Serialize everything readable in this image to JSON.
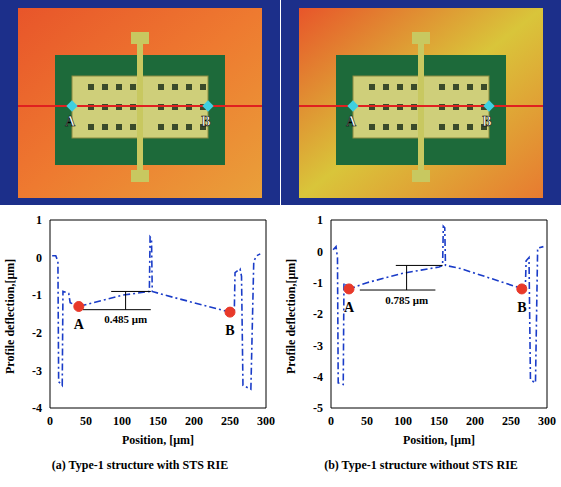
{
  "chart_data": [
    {
      "type": "line",
      "title": "(a) Type-1 structure with STS RIE",
      "x_label": "Position, [μm]",
      "y_label": "Profile deflection,[μm]",
      "color": "#1a3cc8",
      "line_style": "dashdot",
      "x": [
        3,
        8,
        11,
        12,
        17,
        18,
        26,
        28,
        40,
        60,
        80,
        100,
        120,
        138,
        139,
        141,
        142,
        160,
        180,
        200,
        220,
        240,
        250,
        256,
        257,
        264,
        266,
        268,
        279,
        283,
        287,
        292
      ],
      "values": [
        0.05,
        0.05,
        -0.1,
        -3.3,
        -3.4,
        -0.9,
        -0.95,
        -1.2,
        -1.3,
        -1.2,
        -1.1,
        -1.0,
        -0.95,
        -0.9,
        0.55,
        0.5,
        -0.9,
        -1.0,
        -1.1,
        -1.2,
        -1.3,
        -1.4,
        -1.45,
        -1.4,
        -0.4,
        -0.3,
        -0.5,
        -3.4,
        -3.5,
        -0.1,
        0.05,
        0.1
      ],
      "xlim": [
        0,
        300
      ],
      "xticks": [
        0,
        50,
        100,
        150,
        200,
        250,
        300
      ],
      "ylim": [
        -4,
        1
      ],
      "yticks": [
        -4,
        -3,
        -2,
        -1,
        0,
        1
      ],
      "points": [
        {
          "label": "A",
          "x": 40,
          "y": -1.3,
          "color": "#e8392a"
        },
        {
          "label": "B",
          "x": 250,
          "y": -1.45,
          "color": "#e8392a"
        }
      ],
      "dimension": {
        "label": "0.485 μm",
        "x": 105,
        "upper": -0.9,
        "lower": -1.385,
        "upper_from": 85,
        "upper_to": 140,
        "lower_from": 45,
        "lower_to": 140
      }
    },
    {
      "type": "line",
      "title": "(b) Type-1 structure without STS RIE",
      "x_label": "Position, [μm]",
      "y_label": "Profile deflection,[μm]",
      "color": "#1a3cc8",
      "line_style": "dashdot",
      "x": [
        3,
        7,
        9,
        10,
        17,
        18,
        22,
        25,
        50,
        75,
        100,
        125,
        150,
        155,
        156,
        158,
        159,
        180,
        200,
        220,
        240,
        260,
        265,
        270,
        271,
        275,
        277,
        284,
        287,
        295
      ],
      "values": [
        0.05,
        0.15,
        -0.2,
        -4.2,
        -4.25,
        -1.0,
        -1.1,
        -1.2,
        -1.0,
        -0.85,
        -0.7,
        -0.6,
        -0.5,
        -0.45,
        0.8,
        0.75,
        -0.45,
        -0.55,
        -0.7,
        -0.85,
        -1.0,
        -1.15,
        -1.2,
        -1.1,
        -0.3,
        -0.2,
        -4.1,
        -4.2,
        0.1,
        0.15
      ],
      "xlim": [
        0,
        300
      ],
      "xticks": [
        0,
        50,
        100,
        150,
        200,
        250,
        300
      ],
      "ylim": [
        -5,
        1
      ],
      "yticks": [
        -5,
        -4,
        -3,
        -2,
        -1,
        0,
        1
      ],
      "points": [
        {
          "label": "A",
          "x": 25,
          "y": -1.2,
          "color": "#e8392a"
        },
        {
          "label": "B",
          "x": 265,
          "y": -1.2,
          "color": "#e8392a"
        }
      ],
      "dimension": {
        "label": "0.785 μm",
        "x": 105,
        "upper": -0.45,
        "lower": -1.235,
        "upper_from": 90,
        "upper_to": 155,
        "lower_from": 40,
        "lower_to": 145
      }
    }
  ]
}
